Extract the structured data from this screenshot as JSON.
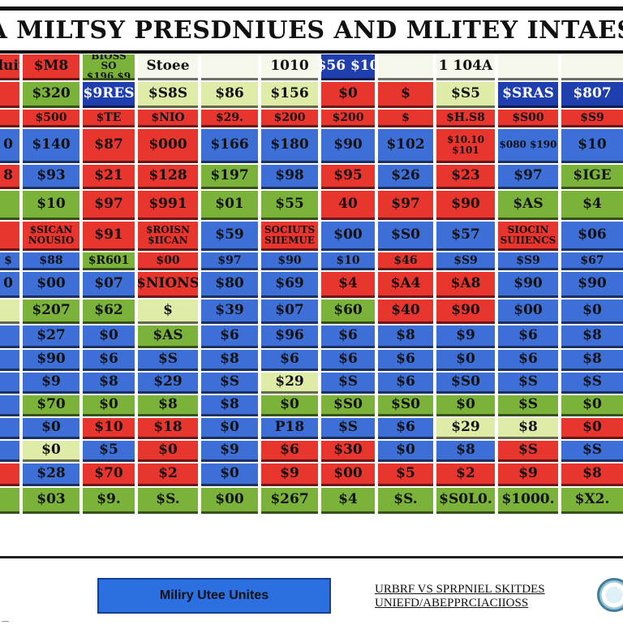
{
  "title": "A MILTSY PRESDNIUES AND MLITEY INTAES",
  "table": {
    "rows": [
      {
        "label": "row-header",
        "cells": [
          {
            "t": "Sanduitnes",
            "c": "r"
          },
          {
            "t": "$M8",
            "c": "r"
          },
          {
            "t": "BIOSS SO $196.$9",
            "c": "g"
          },
          {
            "t": "Stoee",
            "c": "w"
          },
          {
            "t": "",
            "c": "w"
          },
          {
            "t": "1010",
            "c": "w"
          },
          {
            "t": "$56 $10",
            "c": "db"
          },
          {
            "t": "",
            "c": "w"
          },
          {
            "t": "1 104A",
            "c": "w"
          },
          {
            "t": "",
            "c": "w"
          },
          {
            "t": "",
            "c": "w"
          }
        ]
      },
      {
        "label": "row-2",
        "cells": [
          {
            "t": "",
            "c": "r"
          },
          {
            "t": "$320",
            "c": "g"
          },
          {
            "t": "$9RES",
            "c": "db"
          },
          {
            "t": "$S8S",
            "c": "lg"
          },
          {
            "t": "$86",
            "c": "lg"
          },
          {
            "t": "$156",
            "c": "lg"
          },
          {
            "t": "$0",
            "c": "r"
          },
          {
            "t": "$",
            "c": "r"
          },
          {
            "t": "$S5",
            "c": "lg"
          },
          {
            "t": "$SRAS",
            "c": "db"
          },
          {
            "t": "$807",
            "c": "db"
          }
        ]
      },
      {
        "label": "row-3",
        "cells": [
          {
            "t": "",
            "c": "r"
          },
          {
            "t": "$500",
            "c": "r"
          },
          {
            "t": "$TE",
            "c": "r"
          },
          {
            "t": "$NIO",
            "c": "r"
          },
          {
            "t": "$29.",
            "c": "r"
          },
          {
            "t": "$200",
            "c": "r"
          },
          {
            "t": "$200",
            "c": "r"
          },
          {
            "t": "$",
            "c": "r"
          },
          {
            "t": "$H.S8",
            "c": "r"
          },
          {
            "t": "$S00",
            "c": "r"
          },
          {
            "t": "$S9",
            "c": "r"
          }
        ]
      },
      {
        "label": "row-4",
        "cells": [
          {
            "t": "0",
            "c": "b"
          },
          {
            "t": "$140",
            "c": "b"
          },
          {
            "t": "$87",
            "c": "r"
          },
          {
            "t": "$000",
            "c": "r"
          },
          {
            "t": "$166",
            "c": "b"
          },
          {
            "t": "$180",
            "c": "b"
          },
          {
            "t": "$90",
            "c": "b"
          },
          {
            "t": "$102",
            "c": "b"
          },
          {
            "t": "$10.10 $101",
            "c": "r"
          },
          {
            "t": "$080 $190",
            "c": "b"
          },
          {
            "t": "$10",
            "c": "b"
          }
        ]
      },
      {
        "label": "row-5",
        "cells": [
          {
            "t": "8",
            "c": "r"
          },
          {
            "t": "$93",
            "c": "b"
          },
          {
            "t": "$21",
            "c": "r"
          },
          {
            "t": "$128",
            "c": "r"
          },
          {
            "t": "$197",
            "c": "g"
          },
          {
            "t": "$98",
            "c": "b"
          },
          {
            "t": "$95",
            "c": "r"
          },
          {
            "t": "$26",
            "c": "b"
          },
          {
            "t": "$23",
            "c": "r"
          },
          {
            "t": "$97",
            "c": "b"
          },
          {
            "t": "$IGE",
            "c": "g"
          }
        ]
      },
      {
        "label": "row-6",
        "cells": [
          {
            "t": "",
            "c": "g"
          },
          {
            "t": "$10",
            "c": "g"
          },
          {
            "t": "$97",
            "c": "r"
          },
          {
            "t": "$991",
            "c": "r"
          },
          {
            "t": "$01",
            "c": "g"
          },
          {
            "t": "$55",
            "c": "g"
          },
          {
            "t": "40",
            "c": "r"
          },
          {
            "t": "$97",
            "c": "r"
          },
          {
            "t": "$90",
            "c": "r"
          },
          {
            "t": "$AS",
            "c": "g"
          },
          {
            "t": "$4",
            "c": "g"
          }
        ]
      },
      {
        "label": "row-7",
        "cells": [
          {
            "t": "",
            "c": "r"
          },
          {
            "t": "$SICAN NOUSIO",
            "c": "r"
          },
          {
            "t": "$91",
            "c": "r"
          },
          {
            "t": "$ROISN $IICAN",
            "c": "r"
          },
          {
            "t": "$59",
            "c": "b"
          },
          {
            "t": "SOCIUTS SIIEMUE",
            "c": "r"
          },
          {
            "t": "$00",
            "c": "b"
          },
          {
            "t": "$S0",
            "c": "b"
          },
          {
            "t": "$57",
            "c": "b"
          },
          {
            "t": "SIOCIN SUIIENCS",
            "c": "r"
          },
          {
            "t": "$06",
            "c": "b"
          }
        ]
      },
      {
        "label": "row-8",
        "cells": [
          {
            "t": "$",
            "c": "b"
          },
          {
            "t": "$88",
            "c": "b"
          },
          {
            "t": "$R601",
            "c": "g"
          },
          {
            "t": "$00",
            "c": "r"
          },
          {
            "t": "$97",
            "c": "b"
          },
          {
            "t": "$90",
            "c": "b"
          },
          {
            "t": "$10",
            "c": "b"
          },
          {
            "t": "$46",
            "c": "r"
          },
          {
            "t": "$S9",
            "c": "b"
          },
          {
            "t": "$S9",
            "c": "b"
          },
          {
            "t": "$67",
            "c": "b"
          }
        ]
      },
      {
        "label": "row-9",
        "cells": [
          {
            "t": "0",
            "c": "b"
          },
          {
            "t": "$00",
            "c": "b"
          },
          {
            "t": "$07",
            "c": "b"
          },
          {
            "t": "$NIONS",
            "c": "r"
          },
          {
            "t": "$80",
            "c": "b"
          },
          {
            "t": "$69",
            "c": "b"
          },
          {
            "t": "$4",
            "c": "r"
          },
          {
            "t": "$A4",
            "c": "r"
          },
          {
            "t": "$A8",
            "c": "r"
          },
          {
            "t": "$90",
            "c": "b"
          },
          {
            "t": "$90",
            "c": "b"
          }
        ]
      },
      {
        "label": "row-10",
        "cells": [
          {
            "t": "",
            "c": "lg"
          },
          {
            "t": "$207",
            "c": "g"
          },
          {
            "t": "$62",
            "c": "g"
          },
          {
            "t": "$",
            "c": "lg"
          },
          {
            "t": "$39",
            "c": "b"
          },
          {
            "t": "$07",
            "c": "b"
          },
          {
            "t": "$60",
            "c": "g"
          },
          {
            "t": "$40",
            "c": "r"
          },
          {
            "t": "$90",
            "c": "r"
          },
          {
            "t": "$00",
            "c": "b"
          },
          {
            "t": "$0",
            "c": "b"
          }
        ]
      },
      {
        "label": "row-11",
        "cells": [
          {
            "t": "",
            "c": "b"
          },
          {
            "t": "$27",
            "c": "b"
          },
          {
            "t": "$0",
            "c": "b"
          },
          {
            "t": "$AS",
            "c": "g"
          },
          {
            "t": "$6",
            "c": "b"
          },
          {
            "t": "$96",
            "c": "b"
          },
          {
            "t": "$6",
            "c": "b"
          },
          {
            "t": "$8",
            "c": "b"
          },
          {
            "t": "$9",
            "c": "b"
          },
          {
            "t": "$6",
            "c": "b"
          },
          {
            "t": "$8",
            "c": "b"
          }
        ]
      },
      {
        "label": "row-12",
        "cells": [
          {
            "t": "",
            "c": "b"
          },
          {
            "t": "$90",
            "c": "b"
          },
          {
            "t": "$6",
            "c": "b"
          },
          {
            "t": "$S",
            "c": "b"
          },
          {
            "t": "$8",
            "c": "b"
          },
          {
            "t": "$6",
            "c": "b"
          },
          {
            "t": "$6",
            "c": "b"
          },
          {
            "t": "$6",
            "c": "b"
          },
          {
            "t": "$0",
            "c": "b"
          },
          {
            "t": "$6",
            "c": "b"
          },
          {
            "t": "$8",
            "c": "b"
          }
        ]
      },
      {
        "label": "row-13",
        "cells": [
          {
            "t": "",
            "c": "b"
          },
          {
            "t": "$9",
            "c": "b"
          },
          {
            "t": "$8",
            "c": "b"
          },
          {
            "t": "$29",
            "c": "b"
          },
          {
            "t": "$S",
            "c": "b"
          },
          {
            "t": "$29",
            "c": "lg"
          },
          {
            "t": "$S",
            "c": "b"
          },
          {
            "t": "$6",
            "c": "b"
          },
          {
            "t": "$S0",
            "c": "b"
          },
          {
            "t": "$S",
            "c": "b"
          },
          {
            "t": "$S",
            "c": "b"
          }
        ]
      },
      {
        "label": "row-14",
        "cells": [
          {
            "t": "",
            "c": "b"
          },
          {
            "t": "$70",
            "c": "g"
          },
          {
            "t": "$0",
            "c": "g"
          },
          {
            "t": "$8",
            "c": "g"
          },
          {
            "t": "$8",
            "c": "b"
          },
          {
            "t": "$0",
            "c": "g"
          },
          {
            "t": "$S0",
            "c": "g"
          },
          {
            "t": "$S0",
            "c": "g"
          },
          {
            "t": "$0",
            "c": "g"
          },
          {
            "t": "$S",
            "c": "g"
          },
          {
            "t": "$0",
            "c": "g"
          }
        ]
      },
      {
        "label": "row-15",
        "cells": [
          {
            "t": "",
            "c": "b"
          },
          {
            "t": "$0",
            "c": "b"
          },
          {
            "t": "$10",
            "c": "r"
          },
          {
            "t": "$18",
            "c": "r"
          },
          {
            "t": "$0",
            "c": "b"
          },
          {
            "t": "P18",
            "c": "b"
          },
          {
            "t": "$S",
            "c": "b"
          },
          {
            "t": "$6",
            "c": "b"
          },
          {
            "t": "$29",
            "c": "lg"
          },
          {
            "t": "$8",
            "c": "lg"
          },
          {
            "t": "$0",
            "c": "r"
          }
        ]
      },
      {
        "label": "row-16",
        "cells": [
          {
            "t": "",
            "c": "b"
          },
          {
            "t": "$0",
            "c": "lg"
          },
          {
            "t": "$5",
            "c": "b"
          },
          {
            "t": "$0",
            "c": "r"
          },
          {
            "t": "$9",
            "c": "b"
          },
          {
            "t": "$6",
            "c": "r"
          },
          {
            "t": "$30",
            "c": "r"
          },
          {
            "t": "$0",
            "c": "b"
          },
          {
            "t": "$8",
            "c": "b"
          },
          {
            "t": "$S",
            "c": "r"
          },
          {
            "t": "$S",
            "c": "b"
          }
        ]
      },
      {
        "label": "row-17",
        "cells": [
          {
            "t": "",
            "c": "r"
          },
          {
            "t": "$28",
            "c": "b"
          },
          {
            "t": "$70",
            "c": "r"
          },
          {
            "t": "$2",
            "c": "r"
          },
          {
            "t": "$0",
            "c": "b"
          },
          {
            "t": "$9",
            "c": "r"
          },
          {
            "t": "$00",
            "c": "r"
          },
          {
            "t": "$5",
            "c": "r"
          },
          {
            "t": "$2",
            "c": "r"
          },
          {
            "t": "$9",
            "c": "r"
          },
          {
            "t": "$8",
            "c": "r"
          }
        ]
      },
      {
        "label": "row-18",
        "cells": [
          {
            "t": "",
            "c": "g"
          },
          {
            "t": "$03",
            "c": "g"
          },
          {
            "t": "$9.",
            "c": "g"
          },
          {
            "t": "$S.",
            "c": "g"
          },
          {
            "t": "$00",
            "c": "g"
          },
          {
            "t": "$267",
            "c": "g"
          },
          {
            "t": "$4",
            "c": "g"
          },
          {
            "t": "$S.",
            "c": "g"
          },
          {
            "t": "$S0L0.",
            "c": "g"
          },
          {
            "t": "$1000.",
            "c": "g"
          },
          {
            "t": "$X2.",
            "c": "g"
          }
        ]
      }
    ]
  },
  "footer": {
    "button_label": "Miliry Utee Unites",
    "caption": "URBRF VS SPRPNIEL SKITDES UNIEFD/ABEPPRCIACIIOSS",
    "footnote": "—"
  },
  "colors": {
    "red": "#e8362f",
    "blue": "#3d6fd6",
    "green": "#7bb33a",
    "dark_blue": "#1f3fae"
  }
}
